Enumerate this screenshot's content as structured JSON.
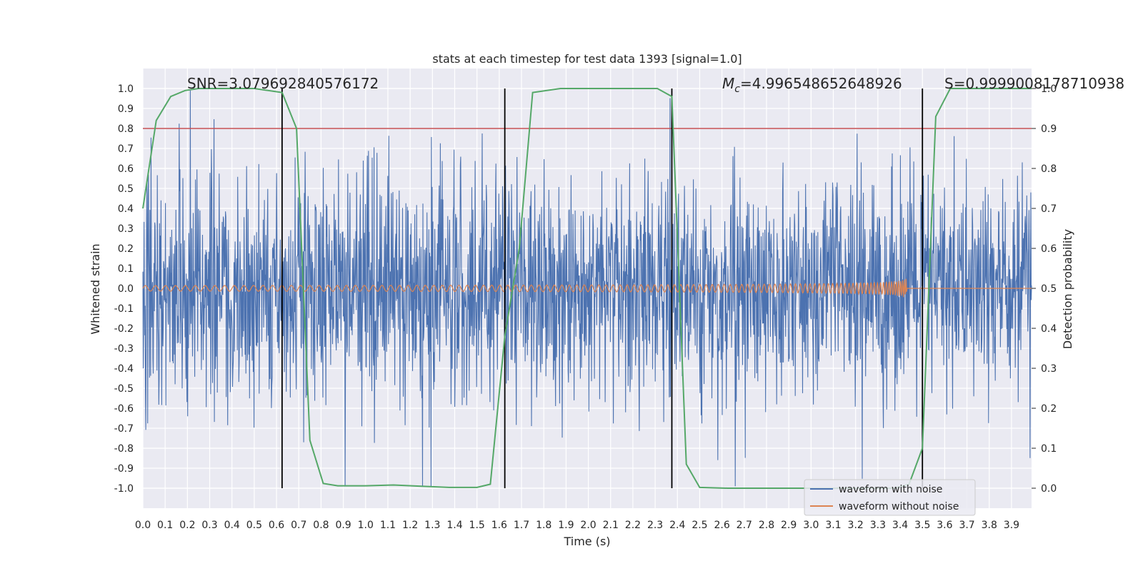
{
  "chart_data": {
    "type": "line",
    "title": "stats at each timestep for test data 1393 [signal=1.0]",
    "xlabel": "Time (s)",
    "ylabel": "Whitened strain",
    "y2label": "Detection probability",
    "xlim": [
      0.0,
      3.99
    ],
    "ylim": [
      -1.1,
      1.1
    ],
    "y2lim": [
      -0.05,
      1.05
    ],
    "x_ticks": [
      "0.0",
      "0.1",
      "0.2",
      "0.3",
      "0.4",
      "0.5",
      "0.6",
      "0.7",
      "0.8",
      "0.9",
      "1.0",
      "1.1",
      "1.2",
      "1.3",
      "1.4",
      "1.5",
      "1.6",
      "1.7",
      "1.8",
      "1.9",
      "2.0",
      "2.1",
      "2.2",
      "2.3",
      "2.4",
      "2.5",
      "2.6",
      "2.7",
      "2.8",
      "2.9",
      "3.0",
      "3.1",
      "3.2",
      "3.3",
      "3.4",
      "3.5",
      "3.6",
      "3.7",
      "3.8",
      "3.9"
    ],
    "y_ticks": [
      "1.0",
      "0.9",
      "0.8",
      "0.7",
      "0.6",
      "0.5",
      "0.4",
      "0.3",
      "0.2",
      "0.1",
      "0.0",
      "-0.1",
      "-0.2",
      "-0.3",
      "-0.4",
      "-0.5",
      "-0.6",
      "-0.7",
      "-0.8",
      "-0.9",
      "-1.0"
    ],
    "y2_ticks": [
      "1.0",
      "0.9",
      "0.8",
      "0.7",
      "0.6",
      "0.5",
      "0.4",
      "0.3",
      "0.2",
      "0.1",
      "0.0"
    ],
    "annotations": {
      "snr": "SNR=3.079692840576172",
      "mc_symbol": "M",
      "mc_sub": "c",
      "mc_value": "=4.996548652648926",
      "s": "S=0.9999008178710938"
    },
    "threshold": {
      "y2": 0.9,
      "color": "#c44e52"
    },
    "boundaries_x": [
      0.625,
      1.625,
      2.375,
      3.5
    ],
    "series": [
      {
        "name": "waveform with noise",
        "color": "#4c72b0",
        "description": "noisy strain, amplitude mostly within ±0.5 with spikes near ±1.0"
      },
      {
        "name": "waveform without noise",
        "color": "#dd8452",
        "description": "chirp, amplitude grows from ~0.015 to ~0.1 ending at 3.43 s"
      },
      {
        "name": "detection probability",
        "color": "#55a868",
        "axis": "y2",
        "x": [
          0.0,
          0.06,
          0.125,
          0.19,
          0.25,
          0.375,
          0.5,
          0.625,
          0.69,
          0.75,
          0.81,
          0.875,
          1.0,
          1.125,
          1.25,
          1.375,
          1.5,
          1.56,
          1.625,
          1.69,
          1.75,
          1.875,
          2.0,
          2.125,
          2.25,
          2.31,
          2.375,
          2.44,
          2.5,
          2.625,
          2.75,
          3.0,
          3.25,
          3.375,
          3.44,
          3.5,
          3.56,
          3.625,
          3.75,
          3.875,
          3.99
        ],
        "y": [
          0.7,
          0.92,
          0.98,
          0.995,
          1.0,
          1.0,
          1.0,
          0.99,
          0.9,
          0.12,
          0.012,
          0.006,
          0.006,
          0.008,
          0.005,
          0.002,
          0.002,
          0.01,
          0.38,
          0.6,
          0.99,
          1.0,
          1.0,
          1.0,
          1.0,
          1.0,
          0.98,
          0.06,
          0.002,
          0.0,
          0.0,
          0.0,
          0.0,
          0.0,
          0.01,
          0.1,
          0.93,
          1.0,
          1.0,
          1.0,
          1.0
        ]
      }
    ],
    "legend": [
      "waveform with noise",
      "waveform without noise"
    ],
    "legend_position": "lower-right",
    "grid": true
  }
}
